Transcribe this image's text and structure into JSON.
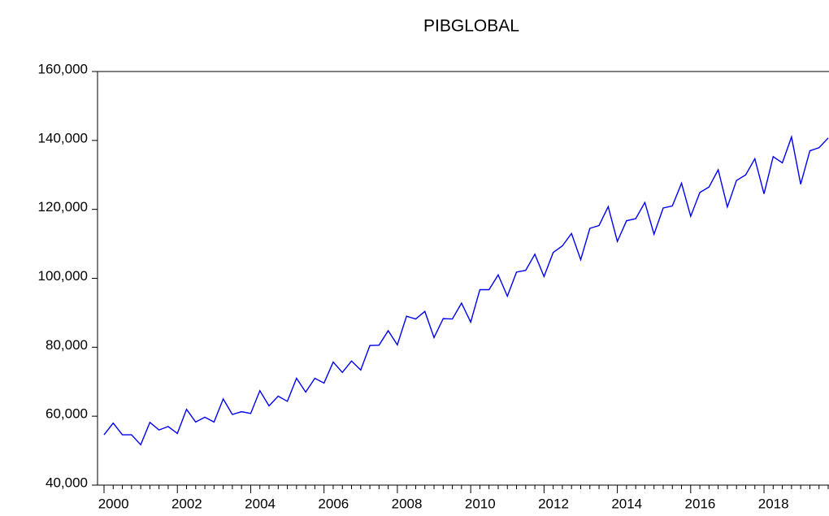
{
  "chart_data": {
    "type": "line",
    "title": "PIBGLOBAL",
    "categories": [
      "2000",
      null,
      null,
      null,
      null,
      null,
      null,
      null,
      "2002",
      null,
      null,
      null,
      null,
      null,
      null,
      null,
      "2004",
      null,
      null,
      null,
      null,
      null,
      null,
      null,
      "2006",
      null,
      null,
      null,
      null,
      null,
      null,
      null,
      "2008",
      null,
      null,
      null,
      null,
      null,
      null,
      null,
      "2010",
      null,
      null,
      null,
      null,
      null,
      null,
      null,
      "2012",
      null,
      null,
      null,
      null,
      null,
      null,
      null,
      "2014",
      null,
      null,
      null,
      null,
      null,
      null,
      null,
      "2016",
      null,
      null,
      null,
      null,
      null,
      null,
      null,
      "2018",
      null,
      null,
      null,
      null,
      null,
      null,
      null
    ],
    "series": [
      {
        "name": "PIBGLOBAL",
        "color": "#0000ee",
        "values": [
          54600,
          58000,
          54600,
          54600,
          51700,
          58200,
          56000,
          57000,
          55000,
          62000,
          58300,
          59700,
          58300,
          65000,
          60500,
          61300,
          60800,
          67400,
          63000,
          65800,
          64300,
          71000,
          67000,
          71000,
          69600,
          75700,
          72700,
          76000,
          73400,
          80500,
          80600,
          84800,
          80700,
          89000,
          88200,
          90400,
          82800,
          88300,
          88200,
          92800,
          87300,
          96700,
          96700,
          101000,
          94800,
          101800,
          102300,
          107000,
          100500,
          107500,
          109400,
          113000,
          105400,
          114500,
          115300,
          120800,
          110700,
          116700,
          117300,
          122000,
          112800,
          120400,
          121000,
          127600,
          118000,
          124900,
          126500,
          131500,
          120700,
          128400,
          130000,
          134700,
          124500,
          135300,
          133500,
          141000,
          127300,
          137000,
          137900,
          140700
        ]
      }
    ],
    "ylim": [
      40000,
      160000
    ],
    "yticks": [
      {
        "value": 40000,
        "label": "40,000"
      },
      {
        "value": 60000,
        "label": "60,000"
      },
      {
        "value": 80000,
        "label": "80,000"
      },
      {
        "value": 100000,
        "label": "100,000"
      },
      {
        "value": 120000,
        "label": "120,000"
      },
      {
        "value": 140000,
        "label": "140,000"
      },
      {
        "value": 160000,
        "label": "160,000"
      }
    ]
  }
}
